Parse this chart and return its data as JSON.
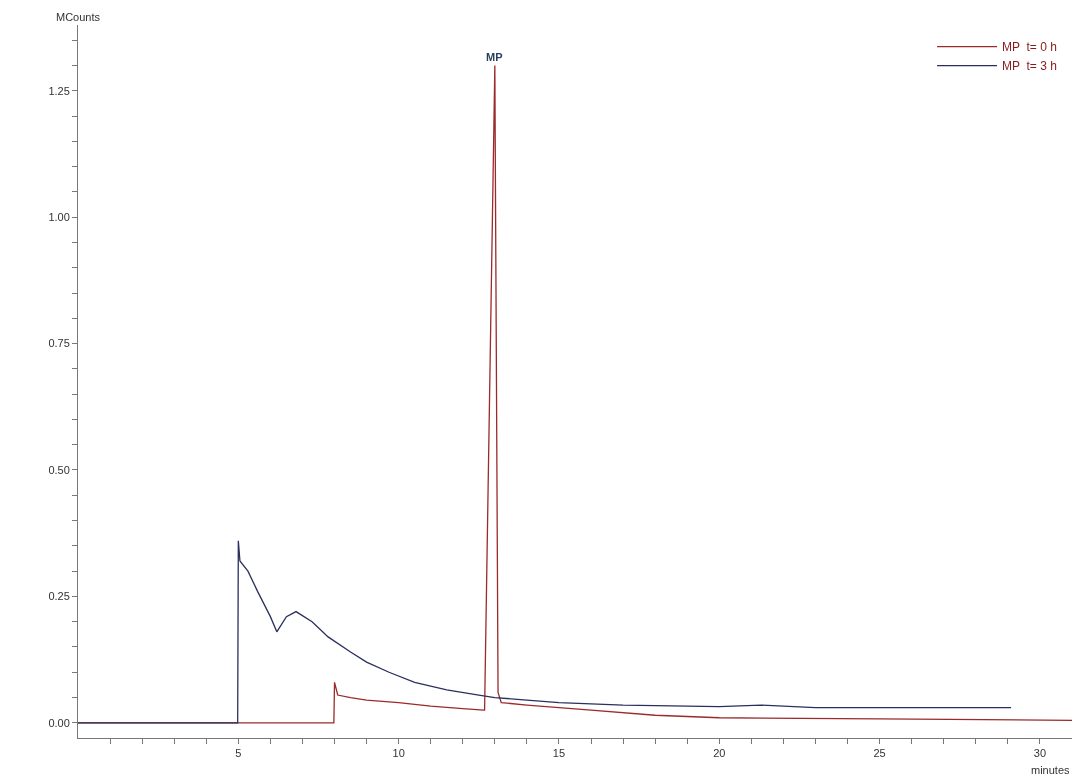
{
  "chart_data": {
    "type": "line",
    "xlabel": "minutes",
    "ylabel": "MCounts",
    "annotations": [
      {
        "text": "MP",
        "x": 13.0,
        "y": 1.3
      }
    ],
    "xlim": [
      0,
      31
    ],
    "ylim": [
      -0.03,
      1.38
    ],
    "xticks": [
      {
        "value": 1,
        "label": null
      },
      {
        "value": 2,
        "label": null
      },
      {
        "value": 3,
        "label": null
      },
      {
        "value": 4,
        "label": null
      },
      5,
      {
        "value": 6,
        "label": null
      },
      {
        "value": 7,
        "label": null
      },
      {
        "value": 8,
        "label": null
      },
      {
        "value": 9,
        "label": null
      },
      10,
      {
        "value": 11,
        "label": null
      },
      {
        "value": 12,
        "label": null
      },
      {
        "value": 13,
        "label": null
      },
      {
        "value": 14,
        "label": null
      },
      15,
      {
        "value": 16,
        "label": null
      },
      {
        "value": 17,
        "label": null
      },
      {
        "value": 18,
        "label": null
      },
      {
        "value": 19,
        "label": null
      },
      20,
      {
        "value": 21,
        "label": null
      },
      {
        "value": 22,
        "label": null
      },
      {
        "value": 23,
        "label": null
      },
      {
        "value": 24,
        "label": null
      },
      25,
      {
        "value": 26,
        "label": null
      },
      {
        "value": 27,
        "label": null
      },
      {
        "value": 28,
        "label": null
      },
      {
        "value": 29,
        "label": null
      },
      30
    ],
    "yticks": [
      {
        "value": 0,
        "label": "0.00"
      },
      {
        "value": 0.05,
        "label": null
      },
      {
        "value": 0.1,
        "label": null
      },
      {
        "value": 0.15,
        "label": null
      },
      {
        "value": 0.2,
        "label": null
      },
      {
        "value": 0.25,
        "label": "0.25"
      },
      {
        "value": 0.3,
        "label": null
      },
      {
        "value": 0.35,
        "label": null
      },
      {
        "value": 0.4,
        "label": null
      },
      {
        "value": 0.45,
        "label": null
      },
      {
        "value": 0.5,
        "label": "0.50"
      },
      {
        "value": 0.55,
        "label": null
      },
      {
        "value": 0.6,
        "label": null
      },
      {
        "value": 0.65,
        "label": null
      },
      {
        "value": 0.7,
        "label": null
      },
      {
        "value": 0.75,
        "label": "0.75"
      },
      {
        "value": 0.8,
        "label": null
      },
      {
        "value": 0.85,
        "label": null
      },
      {
        "value": 0.9,
        "label": null
      },
      {
        "value": 0.95,
        "label": null
      },
      {
        "value": 1.0,
        "label": "1.00"
      },
      {
        "value": 1.05,
        "label": null
      },
      {
        "value": 1.1,
        "label": null
      },
      {
        "value": 1.15,
        "label": null
      },
      {
        "value": 1.2,
        "label": null
      },
      {
        "value": 1.25,
        "label": "1.25"
      },
      {
        "value": 1.3,
        "label": null
      },
      {
        "value": 1.35,
        "label": null
      }
    ],
    "legend": "top right",
    "marker": "none",
    "line_style": "solid",
    "series": [
      {
        "name": "MP  t= 0 h",
        "color": "#9b2a2a",
        "x": [
          0,
          7.98,
          8.0,
          8.1,
          8.5,
          9.0,
          10.0,
          11.0,
          12.0,
          12.65,
          12.68,
          13.0,
          13.1,
          13.2,
          14.0,
          16.0,
          18.0,
          20.0,
          25.0,
          31.0
        ],
        "values": [
          0,
          0,
          0.08,
          0.055,
          0.05,
          0.045,
          0.04,
          0.033,
          0.028,
          0.025,
          0.025,
          1.3,
          0.06,
          0.04,
          0.035,
          0.025,
          0.015,
          0.01,
          0.008,
          0.005
        ]
      },
      {
        "name": "MP  t= 3 h",
        "color": "#2a2f5e",
        "x": [
          0,
          4.98,
          5.0,
          5.05,
          5.3,
          5.6,
          6.0,
          6.2,
          6.5,
          6.8,
          7.3,
          7.8,
          8.5,
          9.0,
          9.7,
          10.5,
          11.5,
          12.5,
          13.0,
          14.0,
          15.0,
          17.0,
          20.0,
          21.3,
          23.0,
          29.1
        ],
        "values": [
          0,
          0,
          0.36,
          0.32,
          0.3,
          0.26,
          0.21,
          0.18,
          0.21,
          0.22,
          0.2,
          0.17,
          0.14,
          0.12,
          0.1,
          0.08,
          0.065,
          0.055,
          0.05,
          0.045,
          0.04,
          0.035,
          0.032,
          0.035,
          0.03,
          0.03
        ]
      }
    ]
  }
}
